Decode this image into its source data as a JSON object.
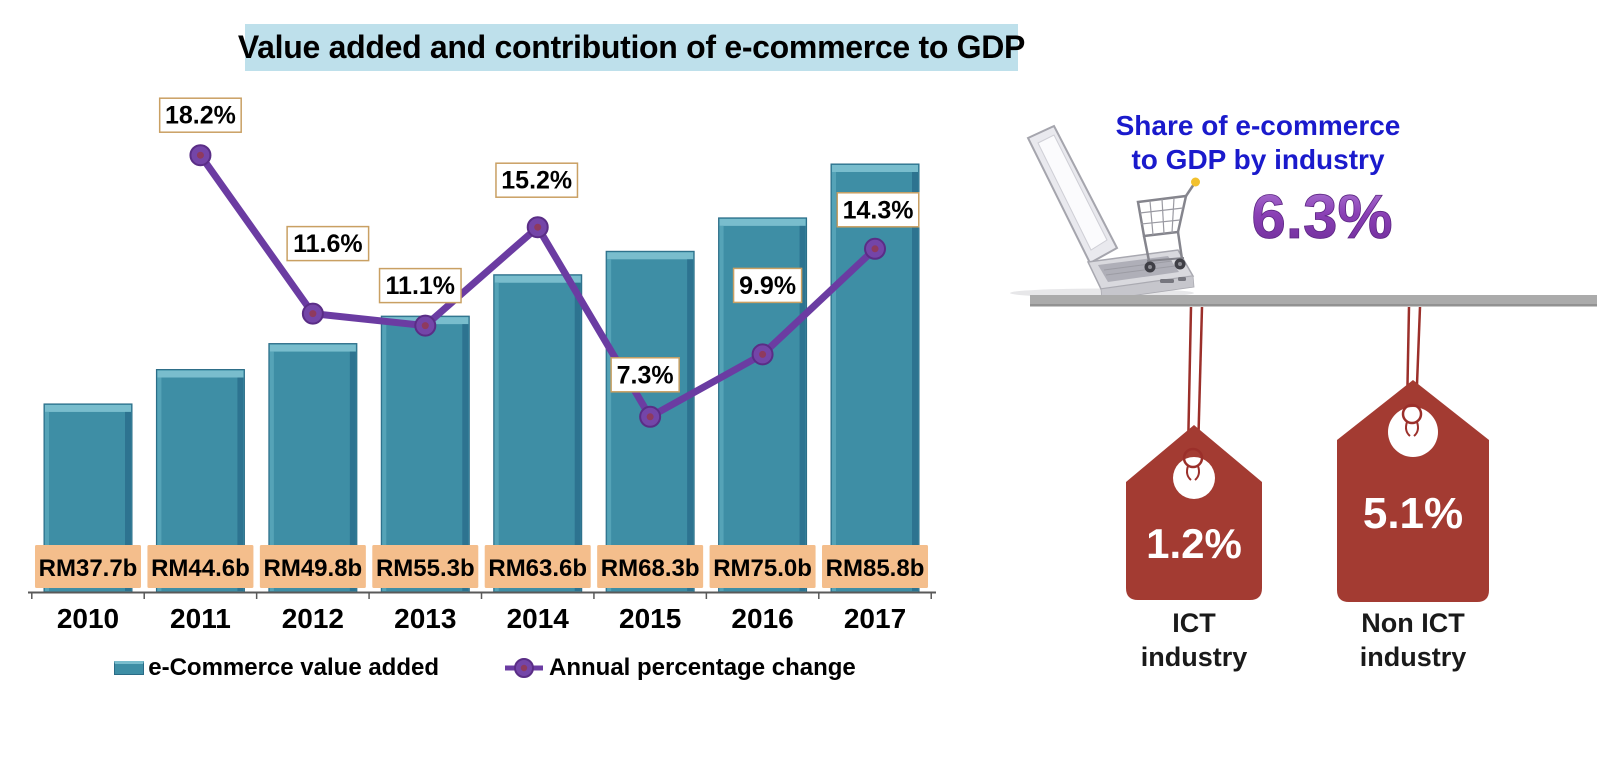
{
  "title": "Value added and contribution of e-commerce to GDP",
  "banner_color": "#BEE0EB",
  "chart_data": {
    "type": "bar+line",
    "title": "Value added and contribution of e-commerce to GDP",
    "categories": [
      "2010",
      "2011",
      "2012",
      "2013",
      "2014",
      "2015",
      "2016",
      "2017"
    ],
    "series": [
      {
        "name": "e-Commerce value added",
        "type": "bar",
        "unit": "RM billion",
        "values": [
          37.7,
          44.6,
          49.8,
          55.3,
          63.6,
          68.3,
          75.0,
          85.8
        ],
        "data_labels": [
          "RM37.7b",
          "RM44.6b",
          "RM49.8b",
          "RM55.3b",
          "RM63.6b",
          "RM68.3b",
          "RM75.0b",
          "RM85.8b"
        ]
      },
      {
        "name": "Annual percentage change",
        "type": "line",
        "unit": "percent",
        "values": [
          null,
          18.2,
          11.6,
          11.1,
          15.2,
          7.3,
          9.9,
          14.3
        ],
        "data_labels": [
          null,
          "18.2%",
          "11.6%",
          "11.1%",
          "15.2%",
          "7.3%",
          "9.9%",
          "14.3%"
        ]
      }
    ],
    "xlabel": "",
    "ylabel": "",
    "grid": false,
    "legend_position": "bottom",
    "colors": {
      "bar": "#3E8EA5",
      "line": "#6B3CA2",
      "bar_value_label_bg": "#F4BE8C",
      "line_label_border": "#C9A063"
    }
  },
  "right_panel": {
    "heading_lines": [
      "Share of e-commerce",
      "to GDP by industry"
    ],
    "heading_color": "#1A1ACC",
    "share_value": "6.3%",
    "share_color": "#8A3FB5",
    "tag_color": "#A33B32",
    "string_color": "#9B2F2A",
    "tags": [
      {
        "value": "1.2%",
        "label_lines": [
          "ICT",
          "industry"
        ]
      },
      {
        "value": "5.1%",
        "label_lines": [
          "Non ICT",
          "industry"
        ]
      }
    ]
  }
}
